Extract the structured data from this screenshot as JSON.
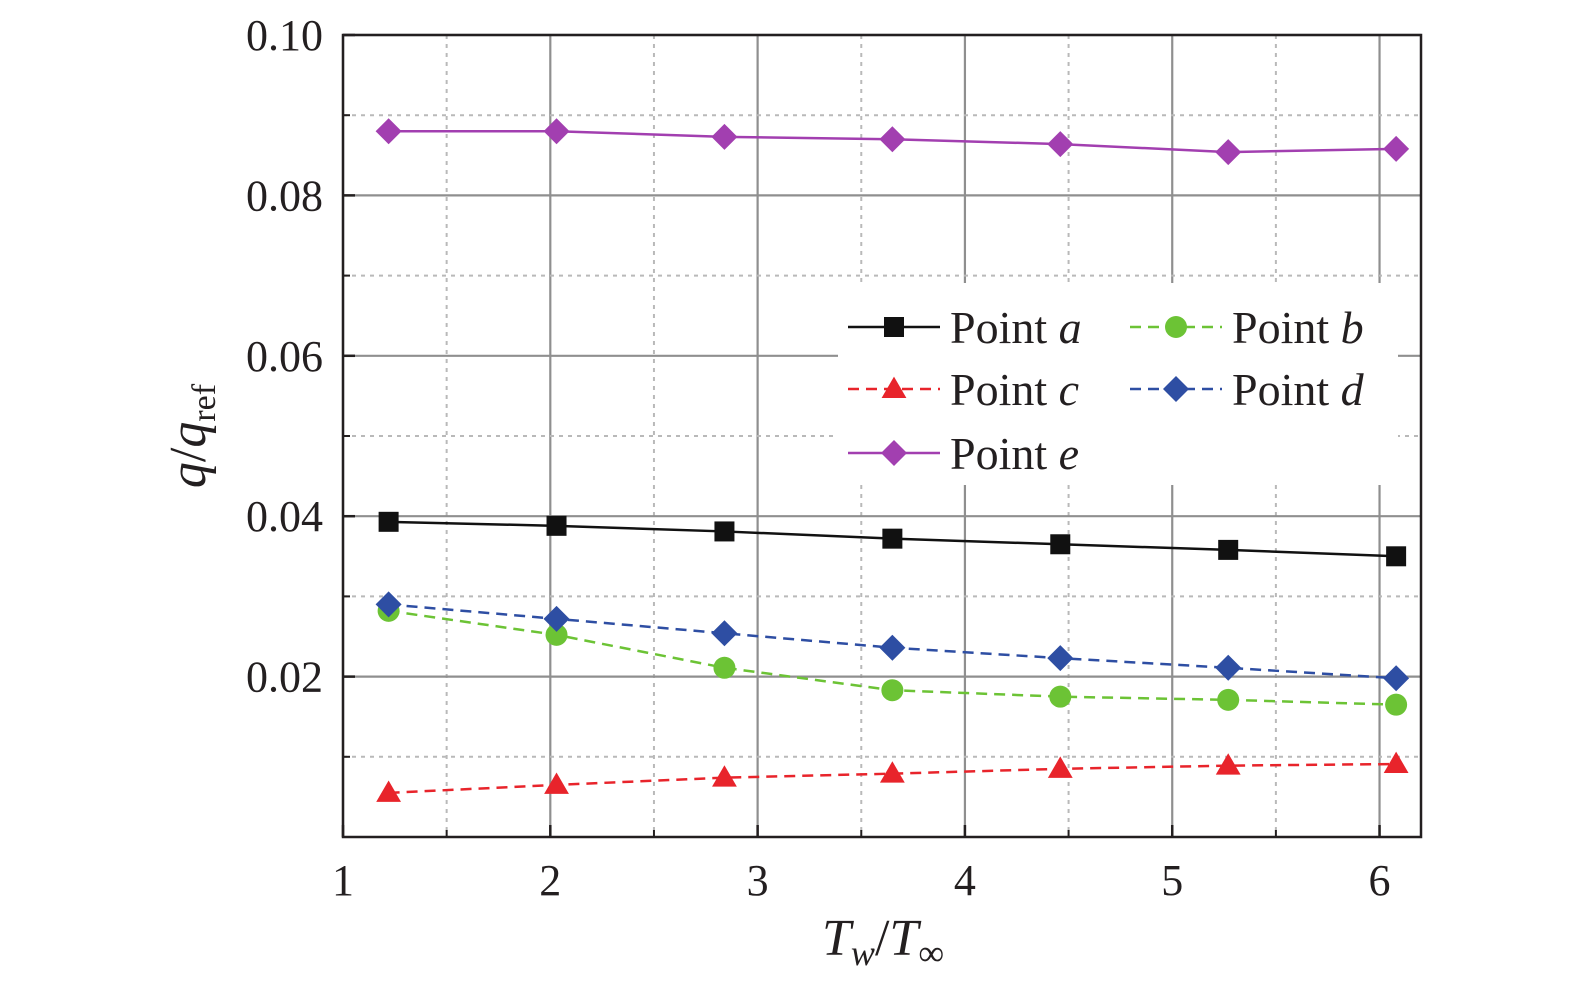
{
  "chart_data": {
    "type": "line",
    "title": "",
    "xlabel": {
      "main": "T",
      "sub1": "w",
      "sep": "/",
      "main2": "T",
      "sub2": "∞"
    },
    "ylabel": {
      "main": "q",
      "sep": "/",
      "main2": "q",
      "sub": "ref"
    },
    "xlim": [
      1,
      6.2
    ],
    "ylim": [
      0,
      0.1
    ],
    "xticks": [
      1,
      2,
      3,
      4,
      5,
      6
    ],
    "yticks": [
      0.02,
      0.04,
      0.06,
      0.08,
      0.1
    ],
    "xtick_labels": [
      "1",
      "2",
      "3",
      "4",
      "5",
      "6"
    ],
    "ytick_labels": [
      "0.02",
      "0.04",
      "0.06",
      "0.08",
      "0.10"
    ],
    "grid": true,
    "legend_position": "top-right",
    "x": [
      1.22,
      2.03,
      2.84,
      3.65,
      4.46,
      5.27,
      6.08
    ],
    "series": [
      {
        "name": "Point a",
        "prefix": "Point ",
        "letter": "a",
        "color": "#111111",
        "dash": "solid",
        "marker": "square",
        "values": [
          0.0393,
          0.0388,
          0.0381,
          0.0372,
          0.0365,
          0.0358,
          0.035
        ]
      },
      {
        "name": "Point b",
        "prefix": "Point ",
        "letter": "b",
        "color": "#6cc335",
        "dash": "dashed",
        "marker": "circle",
        "values": [
          0.0282,
          0.0252,
          0.0211,
          0.0183,
          0.0175,
          0.0171,
          0.0165
        ]
      },
      {
        "name": "Point c",
        "prefix": "Point ",
        "letter": "c",
        "color": "#e8242b",
        "dash": "dashed",
        "marker": "triangle",
        "values": [
          0.0055,
          0.0065,
          0.0074,
          0.0079,
          0.0085,
          0.0089,
          0.0091
        ]
      },
      {
        "name": "Point d",
        "prefix": "Point ",
        "letter": "d",
        "color": "#2e4ea3",
        "dash": "dashed",
        "marker": "diamond",
        "values": [
          0.029,
          0.0272,
          0.0254,
          0.0236,
          0.0223,
          0.0211,
          0.0198
        ]
      },
      {
        "name": "Point e",
        "prefix": "Point ",
        "letter": "e",
        "color": "#a23fb0",
        "dash": "solid",
        "marker": "diamond",
        "values": [
          0.088,
          0.088,
          0.0873,
          0.087,
          0.0864,
          0.0854,
          0.0858
        ]
      }
    ]
  }
}
